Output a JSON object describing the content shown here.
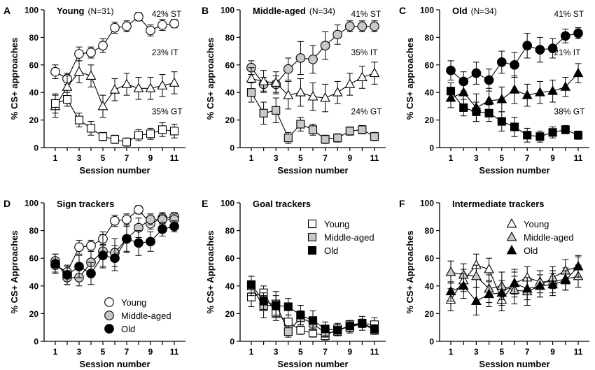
{
  "chart_data": [
    {
      "panel": "A",
      "type": "line",
      "title": "Young",
      "title_n": "(N=31)",
      "xlabel": "Session number",
      "ylabel": "% CS+ approaches",
      "xlim": [
        1,
        11
      ],
      "ylim": [
        0,
        100
      ],
      "xticks": [
        "1",
        "3",
        "5",
        "7",
        "9",
        "11"
      ],
      "yticks": [
        "0",
        "20",
        "40",
        "60",
        "80",
        "100"
      ],
      "series": [
        {
          "name": "ST",
          "marker": "circle",
          "fill": "#ffffff",
          "values": [
            55,
            50,
            68,
            69,
            74,
            87,
            88,
            95,
            85,
            89,
            90
          ],
          "errors": [
            5,
            4,
            5,
            4,
            5,
            4,
            4,
            3,
            4,
            4,
            3
          ]
        },
        {
          "name": "IT",
          "marker": "triangle",
          "fill": "#ffffff",
          "values": [
            30,
            44,
            55,
            52,
            30,
            42,
            46,
            43,
            43,
            45,
            47
          ],
          "errors": [
            8,
            8,
            8,
            8,
            8,
            8,
            8,
            8,
            8,
            8,
            8
          ]
        },
        {
          "name": "GT",
          "marker": "square",
          "fill": "#ffffff",
          "values": [
            32,
            35,
            20,
            14,
            8,
            6,
            4,
            9,
            10,
            13,
            12
          ],
          "errors": [
            7,
            5,
            5,
            5,
            3,
            3,
            3,
            4,
            4,
            5,
            5
          ]
        }
      ],
      "annotations": [
        {
          "text": "42% ST",
          "x": 9.1,
          "y": 95
        },
        {
          "text": "23% IT",
          "x": 9.1,
          "y": 67
        },
        {
          "text": "35% GT",
          "x": 9.1,
          "y": 24
        }
      ]
    },
    {
      "panel": "B",
      "type": "line",
      "title": "Middle-aged",
      "title_n": "(N=34)",
      "xlabel": "Session number",
      "ylabel": "% CS+ approaches",
      "xlim": [
        1,
        11
      ],
      "ylim": [
        0,
        100
      ],
      "xticks": [
        "1",
        "3",
        "5",
        "7",
        "9",
        "11"
      ],
      "yticks": [
        "0",
        "20",
        "40",
        "60",
        "80",
        "100"
      ],
      "series": [
        {
          "name": "ST",
          "marker": "circle",
          "fill": "#c8c8c8",
          "values": [
            58,
            46,
            46,
            57,
            65,
            64,
            74,
            82,
            88,
            88,
            88
          ],
          "errors": [
            5,
            5,
            6,
            8,
            12,
            10,
            10,
            7,
            4,
            4,
            4
          ]
        },
        {
          "name": "IT",
          "marker": "triangle",
          "fill": "#ffffff",
          "values": [
            50,
            48,
            47,
            38,
            40,
            37,
            36,
            40,
            46,
            51,
            54
          ],
          "errors": [
            8,
            8,
            8,
            10,
            10,
            10,
            10,
            8,
            8,
            8,
            8
          ]
        },
        {
          "name": "GT",
          "marker": "square",
          "fill": "#c8c8c8",
          "values": [
            40,
            25,
            27,
            7,
            17,
            13,
            6,
            7,
            12,
            13,
            8
          ],
          "errors": [
            7,
            8,
            9,
            4,
            5,
            4,
            3,
            3,
            3,
            3,
            3
          ]
        }
      ],
      "annotations": [
        {
          "text": "41% ST",
          "x": 9.1,
          "y": 95
        },
        {
          "text": "35% IT",
          "x": 9.1,
          "y": 67
        },
        {
          "text": "24% GT",
          "x": 9.1,
          "y": 24
        }
      ]
    },
    {
      "panel": "C",
      "type": "line",
      "title": "Old",
      "title_n": "(N=34)",
      "xlabel": "Session number",
      "ylabel": "% CS+ approaches",
      "xlim": [
        1,
        11
      ],
      "ylim": [
        0,
        100
      ],
      "xticks": [
        "1",
        "3",
        "5",
        "7",
        "9",
        "11"
      ],
      "yticks": [
        "0",
        "20",
        "40",
        "60",
        "80",
        "100"
      ],
      "series": [
        {
          "name": "ST",
          "marker": "circle",
          "fill": "#000000",
          "values": [
            56,
            48,
            54,
            49,
            62,
            60,
            74,
            71,
            72,
            81,
            83
          ],
          "errors": [
            7,
            7,
            8,
            8,
            8,
            9,
            9,
            9,
            7,
            5,
            4
          ]
        },
        {
          "name": "IT",
          "marker": "triangle",
          "fill": "#000000",
          "values": [
            36,
            40,
            29,
            34,
            35,
            42,
            38,
            40,
            41,
            44,
            54
          ],
          "errors": [
            7,
            9,
            10,
            9,
            9,
            10,
            8,
            8,
            8,
            7,
            7
          ]
        },
        {
          "name": "GT",
          "marker": "square",
          "fill": "#000000",
          "values": [
            41,
            29,
            26,
            25,
            19,
            15,
            9,
            8,
            11,
            13,
            9
          ],
          "errors": [
            6,
            6,
            7,
            6,
            7,
            7,
            5,
            4,
            4,
            3,
            3
          ]
        }
      ],
      "annotations": [
        {
          "text": "41% ST",
          "x": 9.1,
          "y": 95
        },
        {
          "text": "21% IT",
          "x": 9.1,
          "y": 67
        },
        {
          "text": "38% GT",
          "x": 9.1,
          "y": 24
        }
      ]
    },
    {
      "panel": "D",
      "type": "line",
      "title": "Sign trackers",
      "title_n": "",
      "xlabel": "Session number",
      "ylabel": "% CS+ Approaches",
      "xlim": [
        1,
        11
      ],
      "ylim": [
        0,
        100
      ],
      "xticks": [
        "1",
        "3",
        "5",
        "7",
        "9",
        "11"
      ],
      "yticks": [
        "0",
        "20",
        "40",
        "60",
        "80",
        "100"
      ],
      "legend": "bottom-right",
      "series": [
        {
          "name": "Young",
          "marker": "circle",
          "fill": "#ffffff",
          "values": [
            55,
            50,
            68,
            69,
            74,
            87,
            88,
            95,
            85,
            89,
            90
          ],
          "errors": [
            5,
            4,
            5,
            4,
            5,
            4,
            4,
            3,
            4,
            4,
            3
          ]
        },
        {
          "name": "Middle-aged",
          "marker": "circle",
          "fill": "#c8c8c8",
          "values": [
            58,
            46,
            46,
            57,
            65,
            64,
            74,
            82,
            88,
            88,
            88
          ],
          "errors": [
            5,
            5,
            6,
            8,
            12,
            10,
            10,
            7,
            4,
            4,
            4
          ]
        },
        {
          "name": "Old",
          "marker": "circle",
          "fill": "#000000",
          "values": [
            56,
            48,
            54,
            49,
            62,
            60,
            74,
            71,
            72,
            81,
            83
          ],
          "errors": [
            7,
            7,
            8,
            8,
            8,
            9,
            9,
            9,
            7,
            5,
            4
          ]
        }
      ]
    },
    {
      "panel": "E",
      "type": "line",
      "title": "Goal trackers",
      "title_n": "",
      "xlabel": "Session number",
      "ylabel": "% CS+ Approaches",
      "xlim": [
        1,
        11
      ],
      "ylim": [
        0,
        100
      ],
      "xticks": [
        "1",
        "3",
        "5",
        "7",
        "9",
        "11"
      ],
      "yticks": [
        "0",
        "20",
        "40",
        "60",
        "80",
        "100"
      ],
      "legend": "top-right",
      "series": [
        {
          "name": "Young",
          "marker": "square",
          "fill": "#ffffff",
          "values": [
            32,
            35,
            20,
            14,
            8,
            6,
            4,
            9,
            10,
            13,
            12
          ],
          "errors": [
            7,
            5,
            5,
            5,
            3,
            3,
            3,
            4,
            4,
            5,
            5
          ]
        },
        {
          "name": "Middle-aged",
          "marker": "square",
          "fill": "#c8c8c8",
          "values": [
            40,
            25,
            27,
            7,
            17,
            13,
            6,
            7,
            12,
            13,
            8
          ],
          "errors": [
            7,
            8,
            9,
            4,
            5,
            4,
            3,
            3,
            3,
            3,
            3
          ]
        },
        {
          "name": "Old",
          "marker": "square",
          "fill": "#000000",
          "values": [
            41,
            29,
            26,
            25,
            19,
            15,
            9,
            8,
            11,
            13,
            9
          ],
          "errors": [
            6,
            6,
            7,
            6,
            7,
            7,
            5,
            4,
            4,
            3,
            3
          ]
        }
      ]
    },
    {
      "panel": "F",
      "type": "line",
      "title": "Intermediate trackers",
      "title_n": "",
      "xlabel": "Session number",
      "ylabel": "% CS+ Approaches",
      "xlim": [
        1,
        11
      ],
      "ylim": [
        0,
        100
      ],
      "xticks": [
        "1",
        "3",
        "5",
        "7",
        "9",
        "11"
      ],
      "yticks": [
        "0",
        "20",
        "40",
        "60",
        "80",
        "100"
      ],
      "legend": "top-right",
      "series": [
        {
          "name": "Young",
          "marker": "triangle",
          "fill": "#ffffff",
          "values": [
            30,
            44,
            55,
            52,
            30,
            42,
            46,
            43,
            43,
            45,
            47
          ],
          "errors": [
            8,
            8,
            8,
            8,
            8,
            8,
            8,
            8,
            8,
            8,
            8
          ]
        },
        {
          "name": "Middle-aged",
          "marker": "triangle",
          "fill": "#c8c8c8",
          "values": [
            50,
            48,
            47,
            38,
            40,
            37,
            36,
            40,
            46,
            51,
            54
          ],
          "errors": [
            8,
            8,
            8,
            10,
            10,
            10,
            10,
            8,
            8,
            8,
            8
          ]
        },
        {
          "name": "Old",
          "marker": "triangle",
          "fill": "#000000",
          "values": [
            36,
            40,
            29,
            34,
            35,
            42,
            38,
            40,
            41,
            44,
            54
          ],
          "errors": [
            7,
            9,
            10,
            9,
            9,
            10,
            8,
            8,
            8,
            7,
            7
          ]
        }
      ]
    }
  ]
}
